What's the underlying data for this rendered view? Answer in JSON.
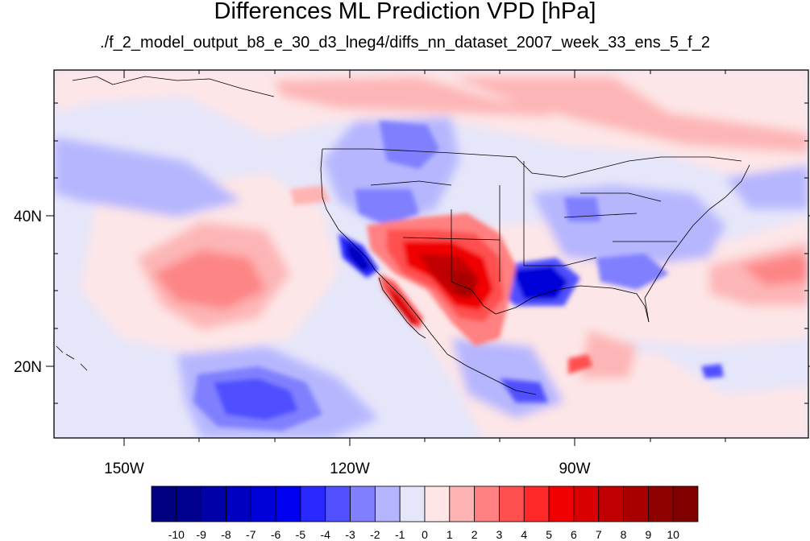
{
  "title": "Differences ML Prediction VPD [hPa]",
  "subtitle": "./f_2_model_output_b8_e_30_d3_lneg4/diffs_nn_dataset_2007_week_33_ens_5_f_2",
  "map": {
    "projection": "cylindrical equidistant",
    "lon_range": [
      -160,
      -60
    ],
    "lat_range": [
      10,
      59
    ],
    "lon_ticks": [
      "150W",
      "120W",
      "90W"
    ],
    "lat_ticks": [
      "40N",
      "20N"
    ]
  },
  "colorbar": {
    "labels": [
      "-10",
      "-9",
      "-8",
      "-7",
      "-6",
      "-5",
      "-4",
      "-3",
      "-2",
      "-1",
      "0",
      "1",
      "2",
      "3",
      "4",
      "5",
      "6",
      "7",
      "8",
      "9",
      "10"
    ],
    "colors": [
      "#000080",
      "#00008f",
      "#0000a8",
      "#0000c0",
      "#0000d8",
      "#0000f0",
      "#2828ff",
      "#5050ff",
      "#8080ff",
      "#b4b4ff",
      "#e6e6fa",
      "#ffe6e6",
      "#ffb4b4",
      "#ff8080",
      "#ff5050",
      "#ff2828",
      "#f00000",
      "#d80000",
      "#c00000",
      "#a80000",
      "#8f0000",
      "#800000"
    ]
  }
}
